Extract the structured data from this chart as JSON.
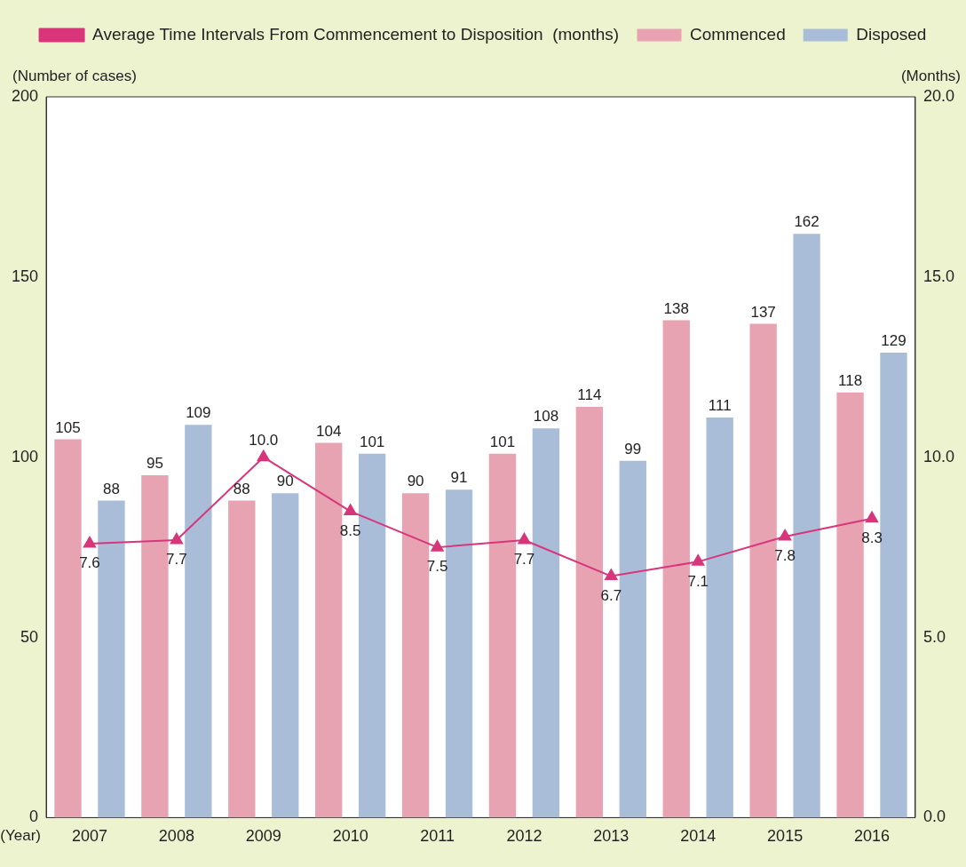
{
  "chart_data": {
    "type": "bar",
    "categories": [
      "2007",
      "2008",
      "2009",
      "2010",
      "2011",
      "2012",
      "2013",
      "2014",
      "2015",
      "2016"
    ],
    "series": [
      {
        "name": "Commenced",
        "color": "#e8a3b3",
        "values": [
          105,
          95,
          88,
          104,
          90,
          101,
          114,
          138,
          137,
          118
        ]
      },
      {
        "name": "Disposed",
        "color": "#a9bdd9",
        "values": [
          88,
          109,
          90,
          101,
          91,
          108,
          99,
          111,
          162,
          129
        ]
      },
      {
        "name": "Average Time Intervals From Commencement to Disposition  (months)",
        "type": "line",
        "axis": "y2",
        "color": "#d8357a",
        "marker": "triangle",
        "values": [
          7.6,
          7.7,
          10.0,
          8.5,
          7.5,
          7.7,
          6.7,
          7.1,
          7.8,
          8.3
        ],
        "value_labels": [
          "7.6",
          "7.7",
          "10.0",
          "8.5",
          "7.5",
          "7.7",
          "6.7",
          "7.1",
          "7.8",
          "8.3"
        ]
      }
    ],
    "xlabel": "(Year)",
    "ylabel": "(Number of cases)",
    "y2label": "(Months)",
    "ylim": [
      0,
      200
    ],
    "yticks": [
      0,
      50,
      100,
      150,
      200
    ],
    "y2lim": [
      0,
      20
    ],
    "y2ticks": [
      {
        "value": 0,
        "label": "0.0"
      },
      {
        "value": 5,
        "label": "5.0"
      },
      {
        "value": 10,
        "label": "10.0"
      },
      {
        "value": 15,
        "label": "15.0"
      },
      {
        "value": 20,
        "label": "20.0"
      }
    ],
    "data_labels": true,
    "legend": "top",
    "grid": false
  }
}
